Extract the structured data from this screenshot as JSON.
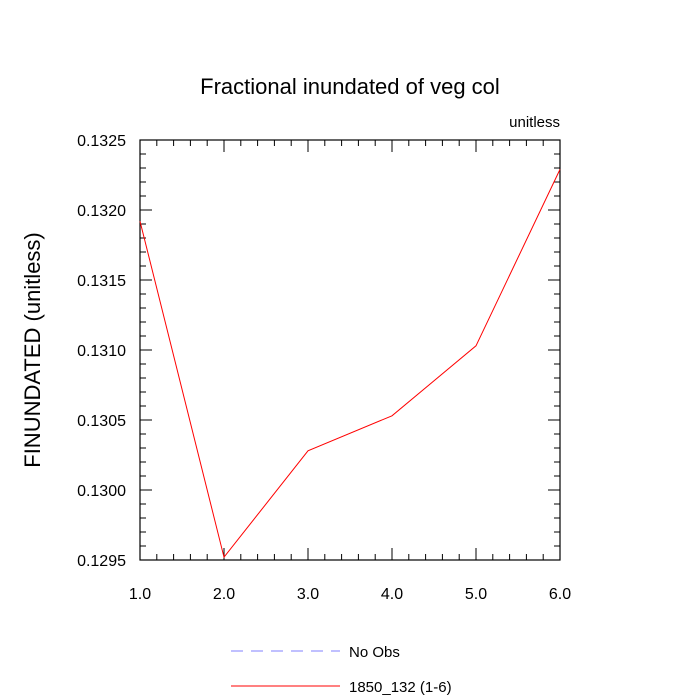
{
  "chart_data": {
    "type": "line",
    "title": "Fractional inundated of veg col",
    "units_label": "unitless",
    "ylabel": "FINUNDATED  (unitless)",
    "xlabel": "",
    "xlim": [
      1.0,
      6.0
    ],
    "ylim": [
      0.1295,
      0.1325
    ],
    "x_ticks": [
      "1.0",
      "2.0",
      "3.0",
      "4.0",
      "5.0",
      "6.0"
    ],
    "y_ticks": [
      "0.1295",
      "0.1300",
      "0.1305",
      "0.1310",
      "0.1315",
      "0.1320",
      "0.1325"
    ],
    "grid": false,
    "legend_position": "bottom",
    "x": [
      1.0,
      2.0,
      3.0,
      4.0,
      5.0,
      6.0
    ],
    "series": [
      {
        "name": "1850_132 (1-6)",
        "color": "#ff0000",
        "dash": "solid",
        "values": [
          0.13192,
          0.12952,
          0.13028,
          0.13053,
          0.13103,
          0.13229
        ]
      }
    ],
    "legend": [
      {
        "label": "No Obs",
        "color": "#8080ff",
        "dash": "dashed"
      },
      {
        "label": "1850_132 (1-6)",
        "color": "#ff0000",
        "dash": "solid"
      }
    ]
  }
}
